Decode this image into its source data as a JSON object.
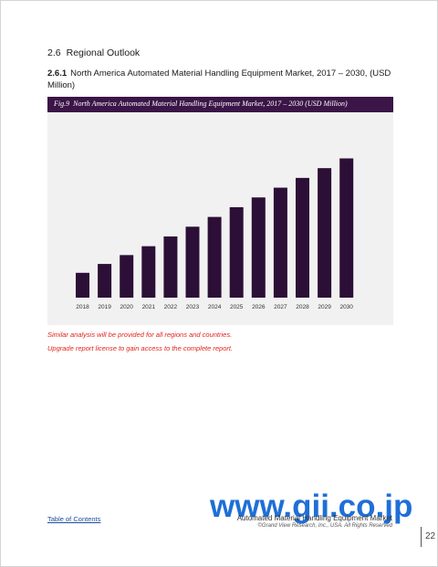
{
  "section": {
    "number": "2.6",
    "title": "Regional Outlook"
  },
  "subsection": {
    "number": "2.6.1",
    "title": "North America Automated Material Handling Equipment Market, 2017 – 2030, (USD Million)"
  },
  "figure": {
    "label": "Fig.9",
    "caption": "North America Automated Material Handling Equipment Market, 2017 – 2030 (USD Million)"
  },
  "colors": {
    "bar": "#2c0f36",
    "caption_bar": "#3b1547",
    "chart_bg": "#f1f1f1",
    "note_text": "#e0241b",
    "watermark": "#1f6fd6"
  },
  "chart_data": {
    "type": "bar",
    "categories": [
      "2018",
      "2019",
      "2020",
      "2021",
      "2022",
      "2023",
      "2024",
      "2025",
      "2026",
      "2027",
      "2028",
      "2029",
      "2030"
    ],
    "values": [
      28,
      38,
      48,
      58,
      69,
      80,
      91,
      102,
      113,
      124,
      135,
      146,
      157
    ],
    "title": "",
    "xlabel": "",
    "ylabel": "",
    "ylim": [
      0,
      175
    ],
    "grid": false,
    "legend": "none"
  },
  "notes": [
    "Similar analysis will be provided for all regions and countries.",
    "Upgrade report license to gain access to the complete report."
  ],
  "watermark": "www.gii.co.jp",
  "footer": {
    "toc_link": "Table of Contents",
    "report_title": "Automated Material Handling Equipment Market",
    "copyright": "©Grand View Research, Inc., USA. All Rights Reserved",
    "page_number": "22"
  }
}
